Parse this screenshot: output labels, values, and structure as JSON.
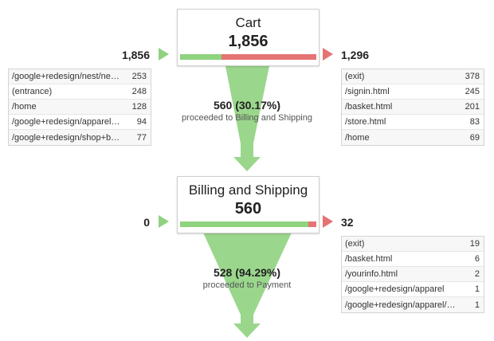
{
  "stages": [
    {
      "name": "Cart",
      "count": "1,856",
      "entrances": "1,856",
      "exits": "1,296",
      "progress_fraction": 0.3017,
      "proceed": {
        "value": "560 (30.17%)",
        "label": "proceeded to Billing and Shipping"
      },
      "sources": [
        {
          "path": "/google+redesign/nest/ne…",
          "count": "253"
        },
        {
          "path": "(entrance)",
          "count": "248"
        },
        {
          "path": "/home",
          "count": "128"
        },
        {
          "path": "/google+redesign/apparel…",
          "count": "94"
        },
        {
          "path": "/google+redesign/shop+b…",
          "count": "77"
        }
      ],
      "destinations": [
        {
          "path": "(exit)",
          "count": "378"
        },
        {
          "path": "/signin.html",
          "count": "245"
        },
        {
          "path": "/basket.html",
          "count": "201"
        },
        {
          "path": "/store.html",
          "count": "83"
        },
        {
          "path": "/home",
          "count": "69"
        }
      ]
    },
    {
      "name": "Billing and Shipping",
      "count": "560",
      "entrances": "0",
      "exits": "32",
      "progress_fraction": 0.9429,
      "proceed": {
        "value": "528 (94.29%)",
        "label": "proceeded to Payment"
      },
      "destinations": [
        {
          "path": "(exit)",
          "count": "19"
        },
        {
          "path": "/basket.html",
          "count": "6"
        },
        {
          "path": "/yourinfo.html",
          "count": "2"
        },
        {
          "path": "/google+redesign/apparel",
          "count": "1"
        },
        {
          "path": "/google+redesign/apparel/…",
          "count": "1"
        }
      ]
    }
  ],
  "colors": {
    "proceed": "#8fd37f",
    "exit": "#e57373"
  }
}
